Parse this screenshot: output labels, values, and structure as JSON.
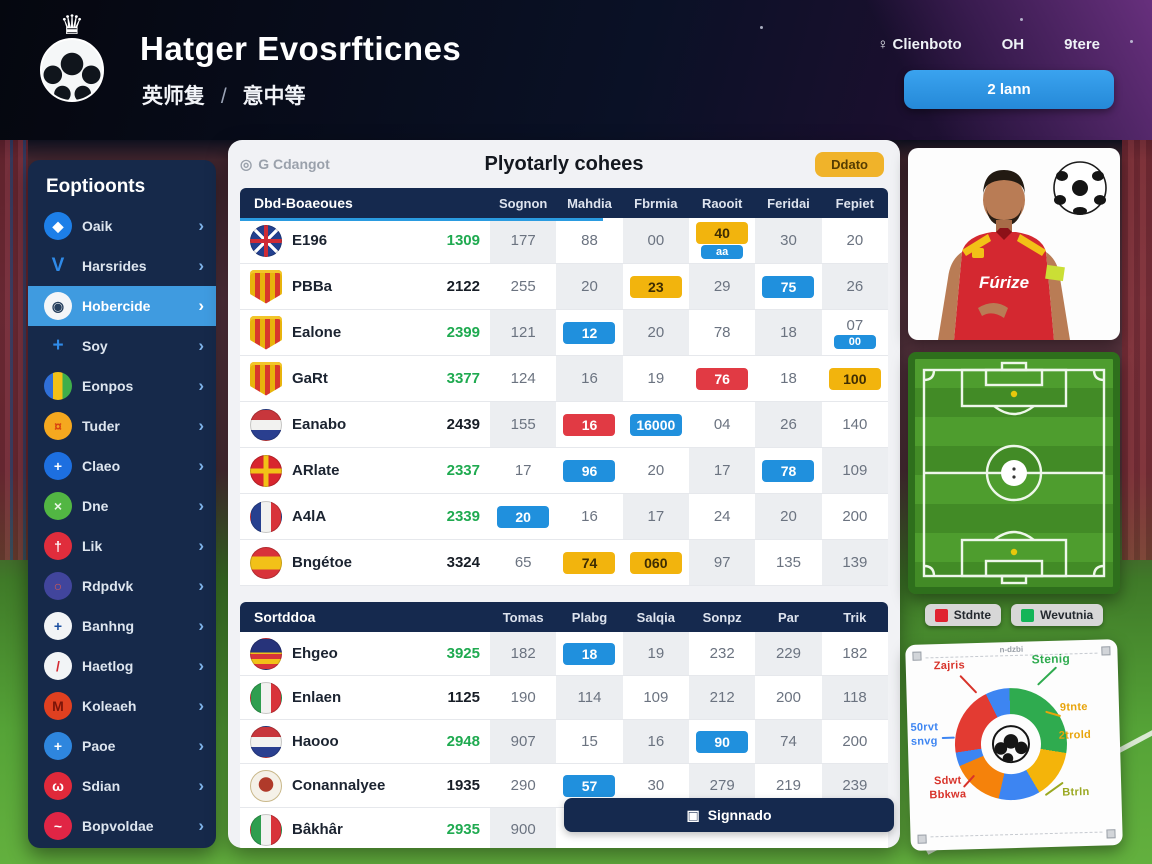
{
  "header": {
    "title": "Hatger Evosrfticnes",
    "subtitle_left": "英师隻",
    "subtitle_sep": "/",
    "subtitle_right": "意中等",
    "nav": [
      {
        "icon": "location-pin-icon",
        "glyph": "♀",
        "label": "Clienboto"
      },
      {
        "icon": null,
        "glyph": "",
        "label": "OH"
      },
      {
        "icon": null,
        "glyph": "",
        "label": "9tere"
      }
    ],
    "cta_label": "2 lann",
    "accent_blue": "#2f9be8"
  },
  "sidebar": {
    "title": "Eoptioonts",
    "chevron": "›",
    "items": [
      {
        "label": "Oaik",
        "icon": "club-icon",
        "bg": "#1d7fe8",
        "glyph": "◆",
        "fg": "#ffffff",
        "active": false
      },
      {
        "label": "Harsrides",
        "icon": "v-logo-icon",
        "bg": "plain",
        "glyph": "V",
        "fg": "#2f8ae8",
        "active": false
      },
      {
        "label": "Hobercide",
        "icon": "crest-ball-icon",
        "bg": "#f4f6f8",
        "glyph": "◉",
        "fg": "#27405e",
        "active": true
      },
      {
        "label": "Soy",
        "icon": "pin-icon",
        "bg": "plain",
        "glyph": "+",
        "fg": "#2f8ae8",
        "active": false
      },
      {
        "label": "Eonpos",
        "icon": "striped-flag-icon",
        "bg": "stripes",
        "glyph": "",
        "fg": "#ffffff",
        "active": false
      },
      {
        "label": "Tuder",
        "icon": "orange-crest-icon",
        "bg": "#f5a81f",
        "glyph": "¤",
        "fg": "#d94510",
        "active": false
      },
      {
        "label": "Claeo",
        "icon": "blue-cross-icon",
        "bg": "#1d6fe0",
        "glyph": "+",
        "fg": "#ffffff",
        "active": false
      },
      {
        "label": "Dne",
        "icon": "green-ball-icon",
        "bg": "#52b643",
        "glyph": "×",
        "fg": "#eaf6e6",
        "active": false
      },
      {
        "label": "Lik",
        "icon": "red-crest-icon",
        "bg": "#e02d3c",
        "glyph": "†",
        "fg": "#ffffff",
        "active": false
      },
      {
        "label": "Rdpdvk",
        "icon": "purple-crest-icon",
        "bg": "#41459c",
        "glyph": "○",
        "fg": "#e05a4c",
        "active": false
      },
      {
        "label": "Banhng",
        "icon": "england-crest-icon",
        "bg": "#f2f4f6",
        "glyph": "+",
        "fg": "#1b4fa0",
        "active": false
      },
      {
        "label": "Haetlog",
        "icon": "sash-crest-icon",
        "bg": "#f2f4f6",
        "glyph": "/",
        "fg": "#d42b33",
        "active": false
      },
      {
        "label": "Koleaeh",
        "icon": "maroon-crest-icon",
        "bg": "#e04020",
        "glyph": "M",
        "fg": "#7a1408",
        "active": false
      },
      {
        "label": "Paoe",
        "icon": "cross-shield-icon",
        "bg": "#2e86de",
        "glyph": "+",
        "fg": "#ffffff",
        "active": false
      },
      {
        "label": "Sdian",
        "icon": "omega-icon",
        "bg": "#e0293a",
        "glyph": "ω",
        "fg": "#ffffff",
        "active": false
      },
      {
        "label": "Bopvoldae",
        "icon": "wave-icon",
        "bg": "#e02545",
        "glyph": "~",
        "fg": "#ffffff",
        "active": false
      }
    ]
  },
  "main": {
    "crumb_icon": "◎",
    "crumb": "G Cdangot",
    "title": "Plyotarly cohees",
    "badge": "Ddato",
    "footer_button": {
      "icon": "▣",
      "label": "Signnado"
    },
    "tables": [
      {
        "first_header": "Dbd-Boaeoues",
        "headers": [
          "Sognon",
          "Mahdia",
          "Fbrmia",
          "Raooit",
          "Feridai",
          "Fepiet"
        ],
        "rows": [
          {
            "flag": "uk",
            "name": "E196",
            "rating": "1309",
            "rating_color": "#1faa50",
            "cells": [
              {
                "v": "177"
              },
              {
                "v": "88"
              },
              {
                "v": "00"
              },
              {
                "v": "40",
                "hl": "yellow",
                "sub": "aa",
                "sub_hl": "blue"
              },
              {
                "v": "30"
              },
              {
                "v": "20"
              }
            ]
          },
          {
            "flag": "crest",
            "name": "PBBa",
            "rating": "2122",
            "rating_color": "#171d26",
            "cells": [
              {
                "v": "255"
              },
              {
                "v": "20"
              },
              {
                "v": "23",
                "hl": "yellow"
              },
              {
                "v": "29"
              },
              {
                "v": "75",
                "hl": "blue"
              },
              {
                "v": "26"
              }
            ]
          },
          {
            "flag": "crest",
            "name": "Ealone",
            "rating": "2399",
            "rating_color": "#1faa50",
            "cells": [
              {
                "v": "121"
              },
              {
                "v": "12",
                "hl": "blue"
              },
              {
                "v": "20"
              },
              {
                "v": "78"
              },
              {
                "v": "18"
              },
              {
                "v": "07",
                "sub": "00",
                "sub_hl": "blue"
              }
            ]
          },
          {
            "flag": "crest",
            "name": "GaRt",
            "rating": "3377",
            "rating_color": "#1faa50",
            "cells": [
              {
                "v": "124"
              },
              {
                "v": "16"
              },
              {
                "v": "19"
              },
              {
                "v": "76",
                "hl": "red"
              },
              {
                "v": "18"
              },
              {
                "v": "100",
                "hl": "yellow"
              }
            ]
          },
          {
            "flag": "nl",
            "name": "Eanabo",
            "rating": "2439",
            "rating_color": "#171d26",
            "cells": [
              {
                "v": "155"
              },
              {
                "v": "16",
                "hl": "red"
              },
              {
                "v": "16000",
                "hl": "blue"
              },
              {
                "v": "04"
              },
              {
                "v": "26"
              },
              {
                "v": "140"
              }
            ]
          },
          {
            "flag": "redcross",
            "name": "ARlate",
            "rating": "2337",
            "rating_color": "#1faa50",
            "cells": [
              {
                "v": "17"
              },
              {
                "v": "96",
                "hl": "blue"
              },
              {
                "v": "20"
              },
              {
                "v": "17"
              },
              {
                "v": "78",
                "hl": "blue"
              },
              {
                "v": "109"
              }
            ]
          },
          {
            "flag": "fr",
            "name": "A4lA",
            "rating": "2339",
            "rating_color": "#1faa50",
            "cells": [
              {
                "v": "20",
                "hl": "blue"
              },
              {
                "v": "16"
              },
              {
                "v": "17"
              },
              {
                "v": "24"
              },
              {
                "v": "20"
              },
              {
                "v": "200"
              }
            ]
          },
          {
            "flag": "es",
            "name": "Bngétoe",
            "rating": "3324",
            "rating_color": "#171d26",
            "cells": [
              {
                "v": "65"
              },
              {
                "v": "74",
                "hl": "yellow"
              },
              {
                "v": "060",
                "hl": "yellow"
              },
              {
                "v": "97"
              },
              {
                "v": "135"
              },
              {
                "v": "139"
              }
            ]
          }
        ]
      },
      {
        "first_header": "Sortddoa",
        "headers": [
          "Tomas",
          "Plabg",
          "Salqia",
          "Sonpz",
          "Par",
          "Trik"
        ],
        "rows": [
          {
            "flag": "cat",
            "name": "Ehgeo",
            "rating": "3925",
            "rating_color": "#1faa50",
            "cells": [
              {
                "v": "182"
              },
              {
                "v": "18",
                "hl": "blue"
              },
              {
                "v": "19"
              },
              {
                "v": "232"
              },
              {
                "v": "229"
              },
              {
                "v": "182"
              }
            ]
          },
          {
            "flag": "it",
            "name": "Enlaen",
            "rating": "1125",
            "rating_color": "#171d26",
            "cells": [
              {
                "v": "190"
              },
              {
                "v": "114"
              },
              {
                "v": "109"
              },
              {
                "v": "212"
              },
              {
                "v": "200"
              },
              {
                "v": "118"
              }
            ]
          },
          {
            "flag": "nl",
            "name": "Haooo",
            "rating": "2948",
            "rating_color": "#1faa50",
            "cells": [
              {
                "v": "907"
              },
              {
                "v": "15"
              },
              {
                "v": "16"
              },
              {
                "v": "90",
                "hl": "blue"
              },
              {
                "v": "74"
              },
              {
                "v": "200"
              }
            ]
          },
          {
            "flag": "emblem",
            "name": "Conannalyee",
            "rating": "1935",
            "rating_color": "#171d26",
            "cells": [
              {
                "v": "290"
              },
              {
                "v": "57",
                "hl": "blue"
              },
              {
                "v": "30"
              },
              {
                "v": "279"
              },
              {
                "v": "219"
              },
              {
                "v": "239"
              }
            ]
          },
          {
            "flag": "it",
            "name": "Bâkhâr",
            "rating": "2935",
            "rating_color": "#1faa50",
            "cells": [
              {
                "v": "900"
              },
              null,
              null,
              null,
              null,
              null
            ]
          }
        ]
      }
    ]
  },
  "right": {
    "player": {
      "jersey_text": "Fúrize"
    },
    "pitch_legend": [
      {
        "color": "#e02230",
        "label": "Stdnte"
      },
      {
        "color": "#13b558",
        "label": "Wevutnia"
      }
    ],
    "donut_labels": {
      "top": "n-dzbi",
      "tl": "Zajris",
      "tr": "Stenig",
      "r1": "9tnte",
      "r2": "2trold",
      "br": "Btrln",
      "l1": "50rvt",
      "l2": "snvg",
      "bl1": "Sdwt",
      "bl2": "Bbkwa"
    }
  },
  "chart_data": {
    "type": "pie",
    "donut": true,
    "title": "n-dzbi",
    "legend_position": "around",
    "center_icon": "soccer-ball",
    "segments": [
      {
        "label": "Stenig",
        "color": "#2fab4f",
        "value": 28
      },
      {
        "label": "9tnte",
        "color": "#f4b40a",
        "value": 14
      },
      {
        "label": "2trold",
        "color": "#3d85f2",
        "value": 12
      },
      {
        "label": "Btrln",
        "color": "#f5820b",
        "value": 15
      },
      {
        "label": "Sdwt Bbkwa",
        "color": "#3d85f2",
        "value": 4
      },
      {
        "label": "Zajris",
        "color": "#e33b32",
        "value": 20
      },
      {
        "label": "50rvt snvg",
        "color": "#3d85f2",
        "value": 7
      }
    ]
  }
}
